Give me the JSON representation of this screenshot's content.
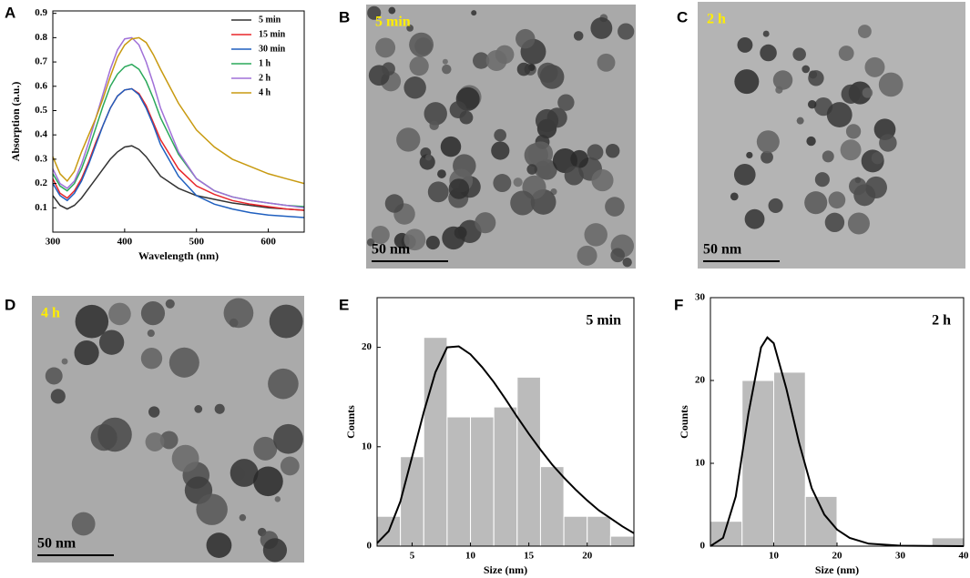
{
  "chart_data": [
    {
      "type": "line",
      "panel": "A",
      "xlabel": "Wavelength (nm)",
      "ylabel": "Absorption (a.u.)",
      "x": [
        300,
        310,
        320,
        330,
        340,
        350,
        360,
        370,
        380,
        390,
        400,
        410,
        420,
        430,
        440,
        450,
        475,
        500,
        525,
        550,
        575,
        600,
        625,
        650
      ],
      "series": [
        {
          "name": "5 min",
          "color": "#333333",
          "values": [
            0.15,
            0.11,
            0.095,
            0.11,
            0.14,
            0.18,
            0.22,
            0.26,
            0.3,
            0.33,
            0.35,
            0.355,
            0.34,
            0.31,
            0.27,
            0.23,
            0.18,
            0.15,
            0.135,
            0.12,
            0.11,
            0.1,
            0.095,
            0.09
          ]
        },
        {
          "name": "15 min",
          "color": "#e8262a",
          "values": [
            0.22,
            0.16,
            0.14,
            0.17,
            0.22,
            0.29,
            0.37,
            0.44,
            0.51,
            0.56,
            0.585,
            0.59,
            0.57,
            0.52,
            0.45,
            0.38,
            0.26,
            0.19,
            0.155,
            0.13,
            0.115,
            0.105,
            0.095,
            0.09
          ]
        },
        {
          "name": "30 min",
          "color": "#1f5fbf",
          "values": [
            0.2,
            0.15,
            0.13,
            0.16,
            0.21,
            0.28,
            0.36,
            0.44,
            0.51,
            0.56,
            0.585,
            0.59,
            0.565,
            0.51,
            0.44,
            0.36,
            0.23,
            0.15,
            0.115,
            0.095,
            0.08,
            0.07,
            0.065,
            0.06
          ]
        },
        {
          "name": "1 h",
          "color": "#2aa85a",
          "values": [
            0.24,
            0.19,
            0.17,
            0.2,
            0.26,
            0.34,
            0.43,
            0.52,
            0.6,
            0.65,
            0.68,
            0.69,
            0.67,
            0.62,
            0.55,
            0.47,
            0.32,
            0.22,
            0.17,
            0.145,
            0.13,
            0.12,
            0.11,
            0.105
          ]
        },
        {
          "name": "2 h",
          "color": "#a070d8",
          "values": [
            0.26,
            0.2,
            0.18,
            0.21,
            0.28,
            0.37,
            0.47,
            0.57,
            0.67,
            0.75,
            0.795,
            0.8,
            0.77,
            0.7,
            0.61,
            0.51,
            0.33,
            0.22,
            0.17,
            0.145,
            0.13,
            0.12,
            0.11,
            0.1
          ]
        },
        {
          "name": "4 h",
          "color": "#c89a10",
          "values": [
            0.31,
            0.24,
            0.21,
            0.25,
            0.33,
            0.4,
            0.47,
            0.55,
            0.64,
            0.72,
            0.77,
            0.795,
            0.8,
            0.78,
            0.73,
            0.67,
            0.53,
            0.42,
            0.35,
            0.3,
            0.27,
            0.24,
            0.22,
            0.2
          ]
        }
      ],
      "xlim": [
        300,
        650
      ],
      "xticks": [
        300,
        400,
        500,
        600
      ],
      "ylim": [
        0,
        0.91
      ],
      "yticks": [
        0.1,
        0.2,
        0.3,
        0.4,
        0.5,
        0.6,
        0.7,
        0.8,
        0.9
      ],
      "legend": "upper right"
    },
    {
      "type": "histogram",
      "panel": "E",
      "annotation": "5 min",
      "xlabel": "Size (nm)",
      "ylabel": "Counts",
      "color": "#bbbbbb",
      "bins": [
        2,
        4,
        6,
        8,
        10,
        12,
        14,
        16,
        18,
        20,
        22,
        24
      ],
      "counts": [
        3,
        9,
        21,
        13,
        13,
        14,
        17,
        8,
        3,
        3,
        1
      ],
      "fit_x": [
        2,
        3,
        4,
        5,
        6,
        7,
        8,
        9,
        10,
        11,
        12,
        13,
        14,
        15,
        16,
        17,
        18,
        19,
        20,
        21,
        22,
        23,
        24
      ],
      "fit_values": [
        0.3,
        1.5,
        4.5,
        9,
        13.5,
        17.5,
        20,
        20.1,
        19.3,
        18,
        16.5,
        14.8,
        13,
        11.3,
        9.7,
        8.2,
        6.9,
        5.7,
        4.6,
        3.6,
        2.8,
        2.0,
        1.3
      ],
      "xlim": [
        2,
        24
      ],
      "xticks": [
        5,
        10,
        15,
        20
      ],
      "ylim": [
        0,
        25
      ],
      "yticks": [
        0,
        10,
        20
      ]
    },
    {
      "type": "histogram",
      "panel": "F",
      "annotation": "2 h",
      "xlabel": "Size (nm)",
      "ylabel": "Counts",
      "color": "#bbbbbb",
      "bins": [
        0,
        5,
        10,
        15,
        20,
        25,
        30,
        35,
        40
      ],
      "counts": [
        3,
        20,
        21,
        6,
        0,
        0,
        0,
        1
      ],
      "fit_x": [
        0,
        2,
        4,
        6,
        8,
        9,
        10,
        12,
        14,
        16,
        18,
        20,
        22,
        25,
        30,
        40
      ],
      "fit_values": [
        0,
        1,
        6,
        16,
        24,
        25.2,
        24.5,
        19,
        12.5,
        7,
        3.8,
        2,
        1,
        0.3,
        0.05,
        0
      ],
      "xlim": [
        0,
        40
      ],
      "xticks": [
        10,
        20,
        30,
        40
      ],
      "ylim": [
        0,
        30
      ],
      "yticks": [
        0,
        10,
        20,
        30
      ]
    }
  ],
  "images": [
    {
      "panel": "B",
      "label": "5 min",
      "scale_bar": "50 nm"
    },
    {
      "panel": "C",
      "label": "2 h",
      "scale_bar": "50 nm"
    },
    {
      "panel": "D",
      "label": "4 h",
      "scale_bar": "50 nm"
    }
  ]
}
